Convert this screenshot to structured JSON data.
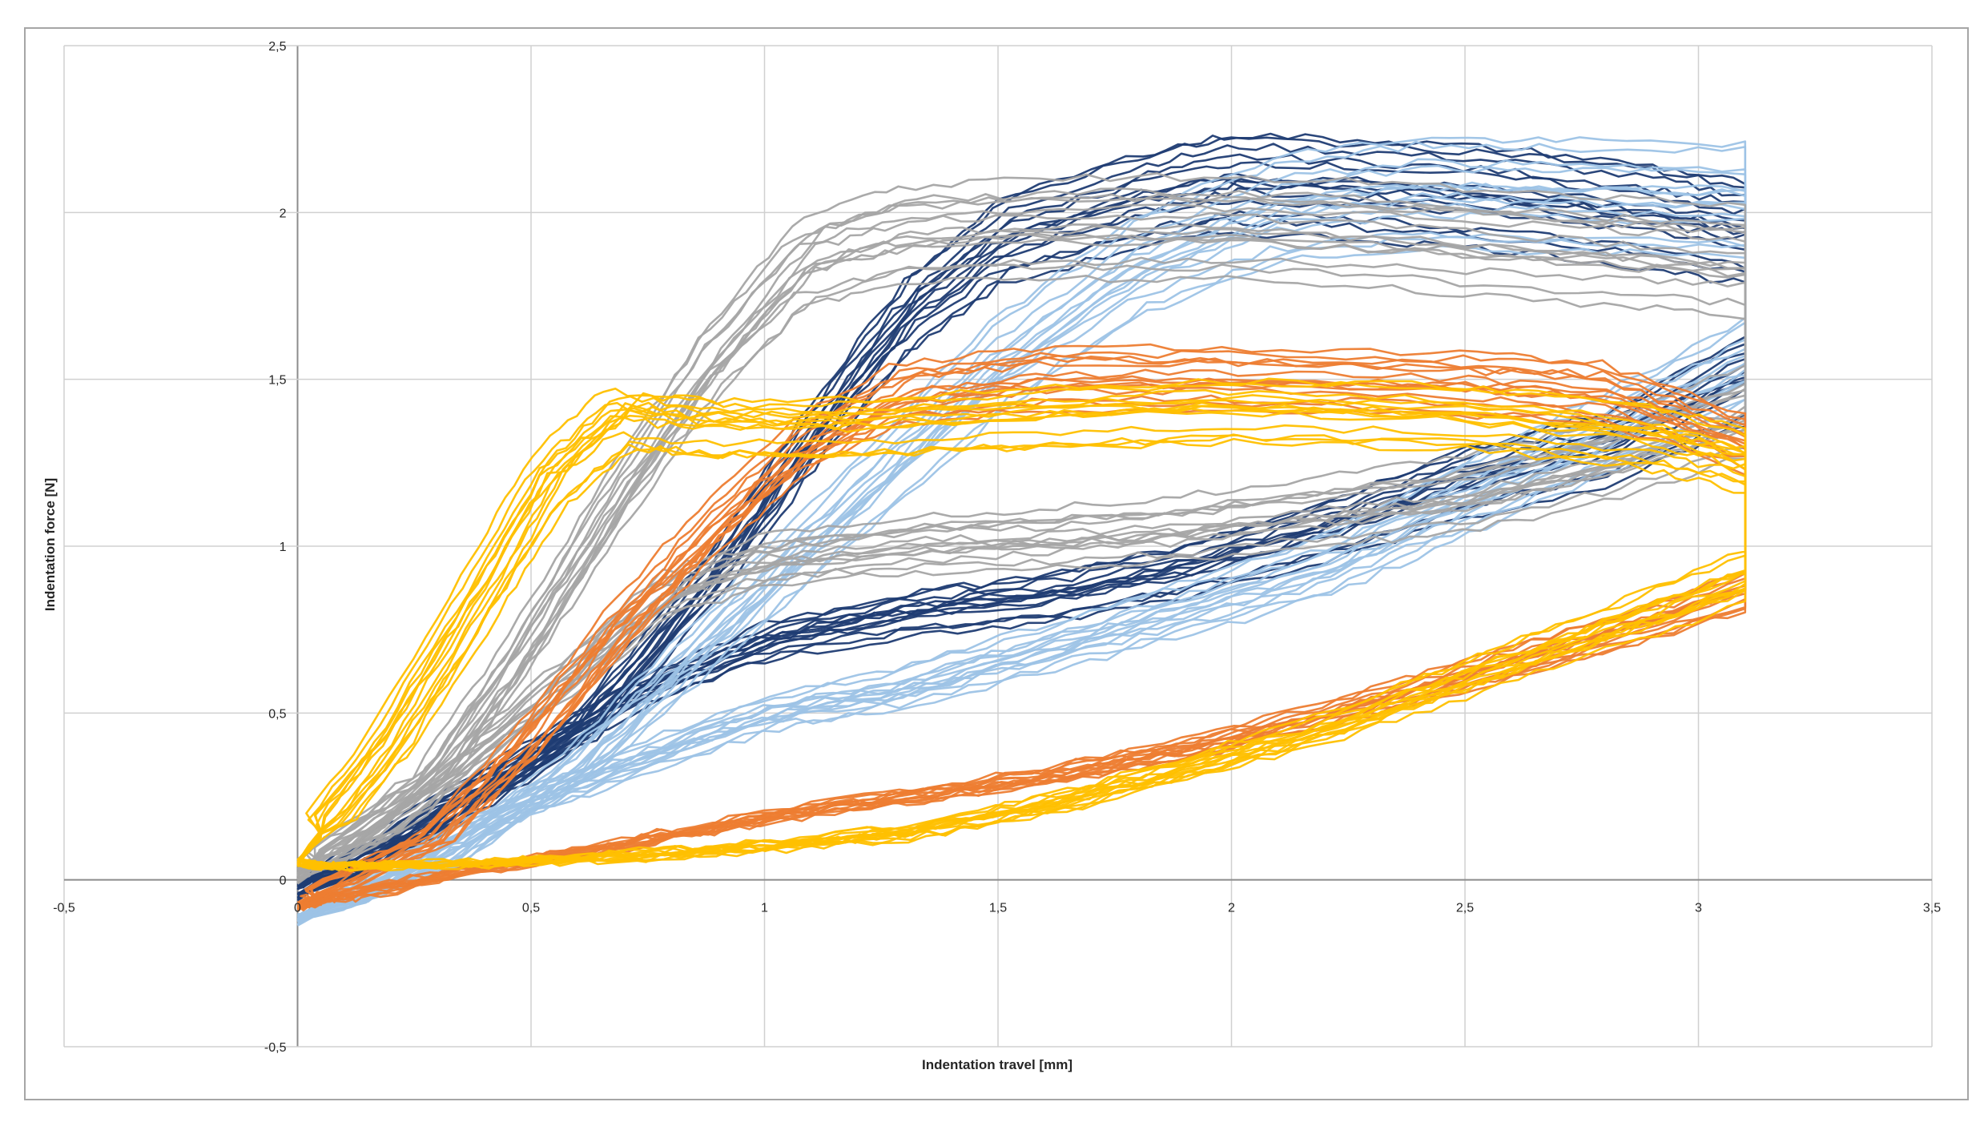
{
  "chart_data": {
    "type": "line",
    "title": "",
    "xlabel": "Indentation travel [mm]",
    "ylabel": "Indentation force [N]",
    "xlim": [
      -0.5,
      3.5
    ],
    "ylim": [
      -0.5,
      2.5
    ],
    "x_ticks": [
      "-0,5",
      "0",
      "0,5",
      "1",
      "1,5",
      "2",
      "2,5",
      "3",
      "3,5"
    ],
    "y_ticks": [
      "-0,5",
      "0",
      "0,5",
      "1",
      "1,5",
      "2",
      "2,5"
    ],
    "grid": true,
    "legend": "none",
    "series": [
      {
        "color": "#1f3c73",
        "repeat": 14,
        "loading": [
          [
            0,
            -0.05
          ],
          [
            0.3,
            0.18
          ],
          [
            0.6,
            0.45
          ],
          [
            0.9,
            0.95
          ],
          [
            1.1,
            1.35
          ],
          [
            1.3,
            1.7
          ],
          [
            1.5,
            1.92
          ],
          [
            1.8,
            2.05
          ],
          [
            2.0,
            2.1
          ],
          [
            2.3,
            2.08
          ],
          [
            2.6,
            2.05
          ],
          [
            2.9,
            2.0
          ],
          [
            3.1,
            1.95
          ]
        ],
        "unloading": [
          [
            3.1,
            1.5
          ],
          [
            2.8,
            1.3
          ],
          [
            2.5,
            1.2
          ],
          [
            2.2,
            1.05
          ],
          [
            1.9,
            0.93
          ],
          [
            1.6,
            0.85
          ],
          [
            1.3,
            0.8
          ],
          [
            1.0,
            0.72
          ],
          [
            0.7,
            0.55
          ],
          [
            0.4,
            0.3
          ],
          [
            0.1,
            0.05
          ],
          [
            0,
            -0.02
          ]
        ]
      },
      {
        "color": "#9dc3e6",
        "repeat": 14,
        "loading": [
          [
            0,
            -0.12
          ],
          [
            0.3,
            0.05
          ],
          [
            0.6,
            0.35
          ],
          [
            0.9,
            0.75
          ],
          [
            1.2,
            1.15
          ],
          [
            1.5,
            1.55
          ],
          [
            1.8,
            1.85
          ],
          [
            2.1,
            2.02
          ],
          [
            2.4,
            2.07
          ],
          [
            2.7,
            2.06
          ],
          [
            3.1,
            2.05
          ]
        ],
        "unloading": [
          [
            3.1,
            1.55
          ],
          [
            2.8,
            1.35
          ],
          [
            2.5,
            1.15
          ],
          [
            2.2,
            0.95
          ],
          [
            1.9,
            0.82
          ],
          [
            1.6,
            0.7
          ],
          [
            1.3,
            0.58
          ],
          [
            1.0,
            0.5
          ],
          [
            0.7,
            0.35
          ],
          [
            0.4,
            0.18
          ],
          [
            0.1,
            -0.05
          ],
          [
            0,
            -0.12
          ]
        ]
      },
      {
        "color": "#a5a5a5",
        "repeat": 14,
        "loading": [
          [
            0,
            0.02
          ],
          [
            0.3,
            0.3
          ],
          [
            0.5,
            0.7
          ],
          [
            0.7,
            1.15
          ],
          [
            0.9,
            1.55
          ],
          [
            1.1,
            1.85
          ],
          [
            1.3,
            1.93
          ],
          [
            1.6,
            1.95
          ],
          [
            2.0,
            1.95
          ],
          [
            2.4,
            1.92
          ],
          [
            2.8,
            1.88
          ],
          [
            3.1,
            1.85
          ]
        ],
        "unloading": [
          [
            3.1,
            1.4
          ],
          [
            2.8,
            1.25
          ],
          [
            2.5,
            1.15
          ],
          [
            2.2,
            1.1
          ],
          [
            1.9,
            1.05
          ],
          [
            1.6,
            1.02
          ],
          [
            1.3,
            1.0
          ],
          [
            1.0,
            0.95
          ],
          [
            0.8,
            0.85
          ],
          [
            0.5,
            0.5
          ],
          [
            0.2,
            0.15
          ],
          [
            0,
            0.0
          ]
        ]
      },
      {
        "color": "#ed7d31",
        "repeat": 14,
        "loading": [
          [
            0,
            -0.08
          ],
          [
            0.3,
            0.12
          ],
          [
            0.5,
            0.4
          ],
          [
            0.7,
            0.75
          ],
          [
            0.9,
            1.05
          ],
          [
            1.1,
            1.3
          ],
          [
            1.3,
            1.45
          ],
          [
            1.6,
            1.5
          ],
          [
            2.0,
            1.5
          ],
          [
            2.5,
            1.48
          ],
          [
            2.8,
            1.45
          ],
          [
            3.1,
            1.3
          ]
        ],
        "unloading": [
          [
            3.1,
            0.85
          ],
          [
            2.8,
            0.72
          ],
          [
            2.5,
            0.6
          ],
          [
            2.2,
            0.48
          ],
          [
            1.9,
            0.38
          ],
          [
            1.6,
            0.3
          ],
          [
            1.3,
            0.24
          ],
          [
            1.0,
            0.18
          ],
          [
            0.7,
            0.1
          ],
          [
            0.4,
            0.03
          ],
          [
            0.1,
            -0.05
          ],
          [
            0,
            -0.08
          ]
        ]
      },
      {
        "color": "#ffc000",
        "repeat": 14,
        "loading": [
          [
            0,
            0.05
          ],
          [
            0.2,
            0.4
          ],
          [
            0.4,
            0.85
          ],
          [
            0.55,
            1.2
          ],
          [
            0.7,
            1.38
          ],
          [
            0.9,
            1.35
          ],
          [
            1.2,
            1.35
          ],
          [
            1.6,
            1.38
          ],
          [
            2.0,
            1.4
          ],
          [
            2.5,
            1.38
          ],
          [
            2.9,
            1.32
          ],
          [
            3.1,
            1.25
          ]
        ],
        "unloading": [
          [
            3.1,
            0.9
          ],
          [
            2.8,
            0.75
          ],
          [
            2.5,
            0.6
          ],
          [
            2.2,
            0.45
          ],
          [
            1.9,
            0.33
          ],
          [
            1.6,
            0.22
          ],
          [
            1.3,
            0.14
          ],
          [
            1.0,
            0.1
          ],
          [
            0.7,
            0.07
          ],
          [
            0.4,
            0.05
          ],
          [
            0.1,
            0.04
          ],
          [
            0,
            0.05
          ]
        ]
      }
    ]
  }
}
